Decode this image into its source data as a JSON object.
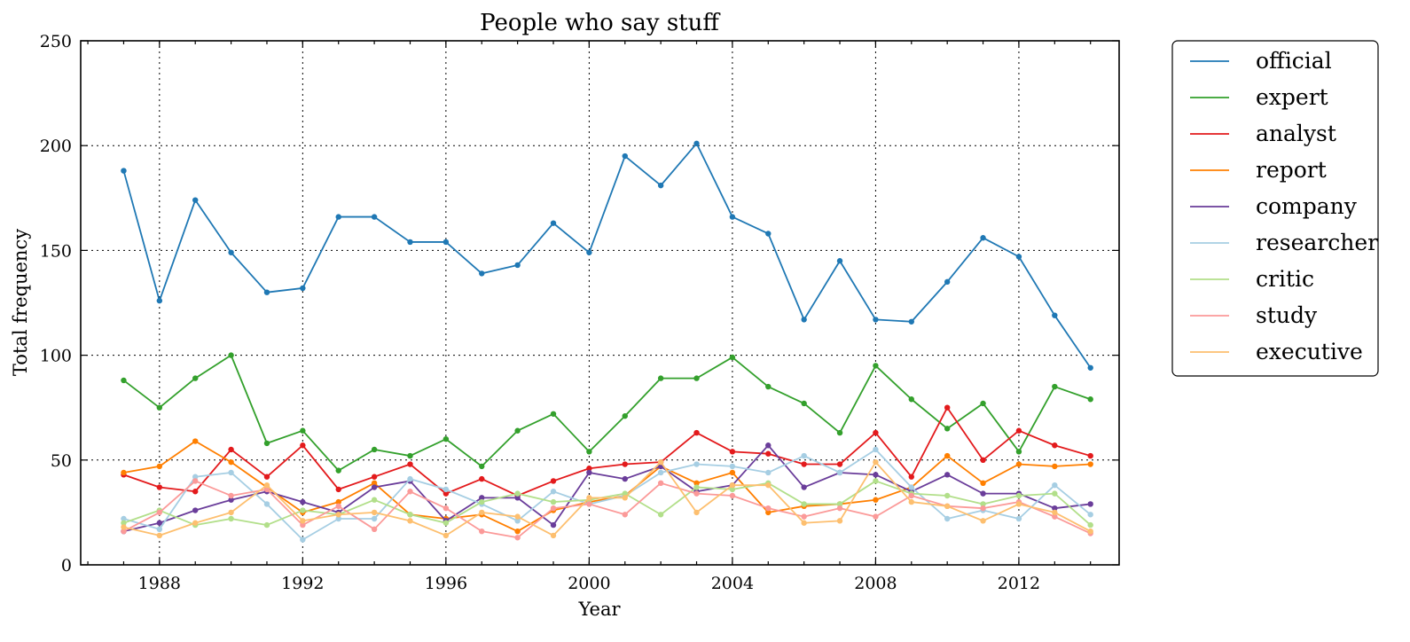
{
  "chart_data": {
    "type": "line",
    "title": "People who say stuff",
    "xlabel": "Year",
    "ylabel": "Total frequency",
    "xlim": [
      1985.8,
      2014.8
    ],
    "ylim": [
      0,
      250
    ],
    "xticks": [
      1988,
      1992,
      1996,
      2000,
      2004,
      2008,
      2012
    ],
    "yticks": [
      0,
      50,
      100,
      150,
      200,
      250
    ],
    "grid": true,
    "legend_position": "outside-right-top",
    "x": [
      1987,
      1988,
      1989,
      1990,
      1991,
      1992,
      1993,
      1994,
      1995,
      1996,
      1997,
      1998,
      1999,
      2000,
      2001,
      2002,
      2003,
      2004,
      2005,
      2006,
      2007,
      2008,
      2009,
      2010,
      2011,
      2012,
      2013,
      2014
    ],
    "series": [
      {
        "name": "official",
        "color": "#1f78b4",
        "values": [
          188,
          126,
          174,
          149,
          130,
          132,
          166,
          166,
          154,
          154,
          139,
          143,
          163,
          149,
          195,
          181,
          201,
          166,
          158,
          117,
          145,
          117,
          116,
          135,
          156,
          147,
          119,
          94
        ]
      },
      {
        "name": "expert",
        "color": "#33a02c",
        "values": [
          88,
          75,
          89,
          100,
          58,
          64,
          45,
          55,
          52,
          60,
          47,
          64,
          72,
          54,
          71,
          89,
          89,
          99,
          85,
          77,
          63,
          95,
          79,
          65,
          77,
          54,
          85,
          79
        ]
      },
      {
        "name": "analyst",
        "color": "#e31a1c",
        "values": [
          43,
          37,
          35,
          55,
          42,
          57,
          36,
          42,
          48,
          34,
          41,
          33,
          40,
          46,
          48,
          49,
          63,
          54,
          53,
          48,
          48,
          63,
          42,
          75,
          50,
          64,
          57,
          52
        ]
      },
      {
        "name": "report",
        "color": "#ff7f00",
        "values": [
          44,
          47,
          59,
          49,
          37,
          25,
          30,
          39,
          24,
          22,
          24,
          16,
          26,
          30,
          33,
          47,
          39,
          44,
          25,
          28,
          29,
          31,
          37,
          52,
          39,
          48,
          47,
          48
        ]
      },
      {
        "name": "company",
        "color": "#6a3d9a",
        "values": [
          16,
          20,
          26,
          31,
          35,
          30,
          25,
          37,
          40,
          21,
          32,
          32,
          19,
          44,
          41,
          47,
          35,
          38,
          57,
          37,
          44,
          43,
          35,
          43,
          34,
          34,
          27,
          29
        ]
      },
      {
        "name": "researcher",
        "color": "#a6cee3",
        "values": [
          22,
          17,
          42,
          44,
          29,
          12,
          22,
          22,
          41,
          36,
          29,
          21,
          35,
          29,
          33,
          44,
          48,
          47,
          44,
          52,
          44,
          55,
          37,
          22,
          26,
          22,
          38,
          24
        ]
      },
      {
        "name": "critic",
        "color": "#b2df8a",
        "values": [
          20,
          26,
          19,
          22,
          19,
          26,
          24,
          31,
          24,
          20,
          30,
          34,
          30,
          31,
          34,
          24,
          37,
          36,
          39,
          29,
          29,
          40,
          34,
          33,
          29,
          33,
          34,
          19
        ]
      },
      {
        "name": "study",
        "color": "#fb9a99",
        "values": [
          16,
          25,
          40,
          33,
          36,
          19,
          28,
          17,
          35,
          27,
          16,
          13,
          27,
          29,
          24,
          39,
          34,
          33,
          27,
          23,
          27,
          23,
          33,
          28,
          27,
          30,
          23,
          15
        ]
      },
      {
        "name": "executive",
        "color": "#fdbf6f",
        "values": [
          18,
          14,
          20,
          25,
          38,
          21,
          24,
          25,
          21,
          14,
          25,
          23,
          14,
          32,
          32,
          49,
          25,
          38,
          38,
          20,
          21,
          49,
          30,
          28,
          21,
          29,
          25,
          16
        ]
      }
    ]
  }
}
